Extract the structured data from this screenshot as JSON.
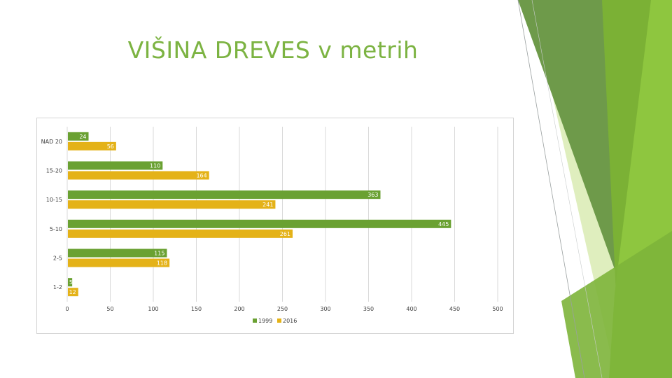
{
  "slide": {
    "title": "VIŠINA DREVES v metrih"
  },
  "colors": {
    "series_1999": "#6aa132",
    "series_2016": "#e4b218",
    "title": "#7cb342",
    "grid": "#d9d9d9"
  },
  "chart_data": {
    "type": "bar",
    "orientation": "horizontal",
    "title": "",
    "xlabel": "",
    "ylabel": "",
    "categories": [
      "NAD 20",
      "15-20",
      "10-15",
      "5-10",
      "2-5",
      "1-2"
    ],
    "series": [
      {
        "name": "1999",
        "values": [
          24,
          110,
          363,
          445,
          115,
          5
        ]
      },
      {
        "name": "2016",
        "values": [
          56,
          164,
          241,
          261,
          118,
          12
        ]
      }
    ],
    "data_labels": [
      [
        "24",
        "110",
        "363",
        "445",
        "115",
        "5"
      ],
      [
        "56",
        "164",
        "241",
        "261",
        "118",
        "12"
      ]
    ],
    "xlim": [
      0,
      500
    ],
    "x_ticks": [
      "0",
      "50",
      "100",
      "150",
      "200",
      "250",
      "300",
      "350",
      "400",
      "450",
      "500"
    ],
    "grid": "vertical",
    "legend": "bottom"
  }
}
